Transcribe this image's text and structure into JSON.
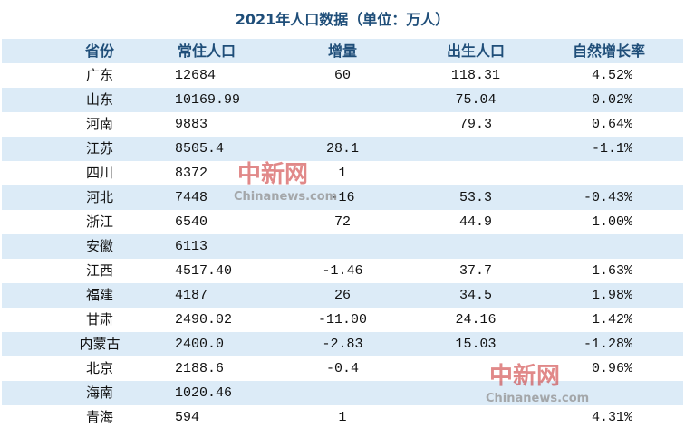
{
  "title": "2021年人口数据（单位：万人）",
  "table": {
    "header": [
      "省份",
      "常住人口",
      "增量",
      "出生人口",
      "自然增长率"
    ],
    "rows": [
      [
        "广东",
        "12684",
        "60",
        "118.31",
        "4.52%"
      ],
      [
        "山东",
        "10169.99",
        null,
        "75.04",
        "0.02%"
      ],
      [
        "河南",
        "9883",
        null,
        "79.3",
        "0.64%"
      ],
      [
        "江苏",
        "8505.4",
        "28.1",
        null,
        "-1.1%"
      ],
      [
        "四川",
        "8372",
        "1",
        null,
        null
      ],
      [
        "河北",
        "7448",
        "-16",
        "53.3",
        "-0.43%"
      ],
      [
        "浙江",
        "6540",
        "72",
        "44.9",
        "1.00%"
      ],
      [
        "安徽",
        "6113",
        null,
        null,
        null
      ],
      [
        "江西",
        "4517.40",
        "-1.46",
        "37.7",
        "1.63%"
      ],
      [
        "福建",
        "4187",
        "26",
        "34.5",
        "1.98%"
      ],
      [
        "甘肃",
        "2490.02",
        "-11.00",
        "24.16",
        "1.42%"
      ],
      [
        "内蒙古",
        "2400.0",
        "-2.83",
        "15.03",
        "-1.28%"
      ],
      [
        "北京",
        "2188.6",
        "-0.4",
        null,
        "0.96%"
      ],
      [
        "海南",
        "1020.46",
        null,
        null,
        null
      ],
      [
        "青海",
        "594",
        "1",
        null,
        "4.31%"
      ]
    ]
  },
  "watermarks": [
    {
      "logo": "中新网",
      "site": "Chinanews.com"
    },
    {
      "logo": "中新网",
      "site": "Chinanews.com"
    }
  ]
}
